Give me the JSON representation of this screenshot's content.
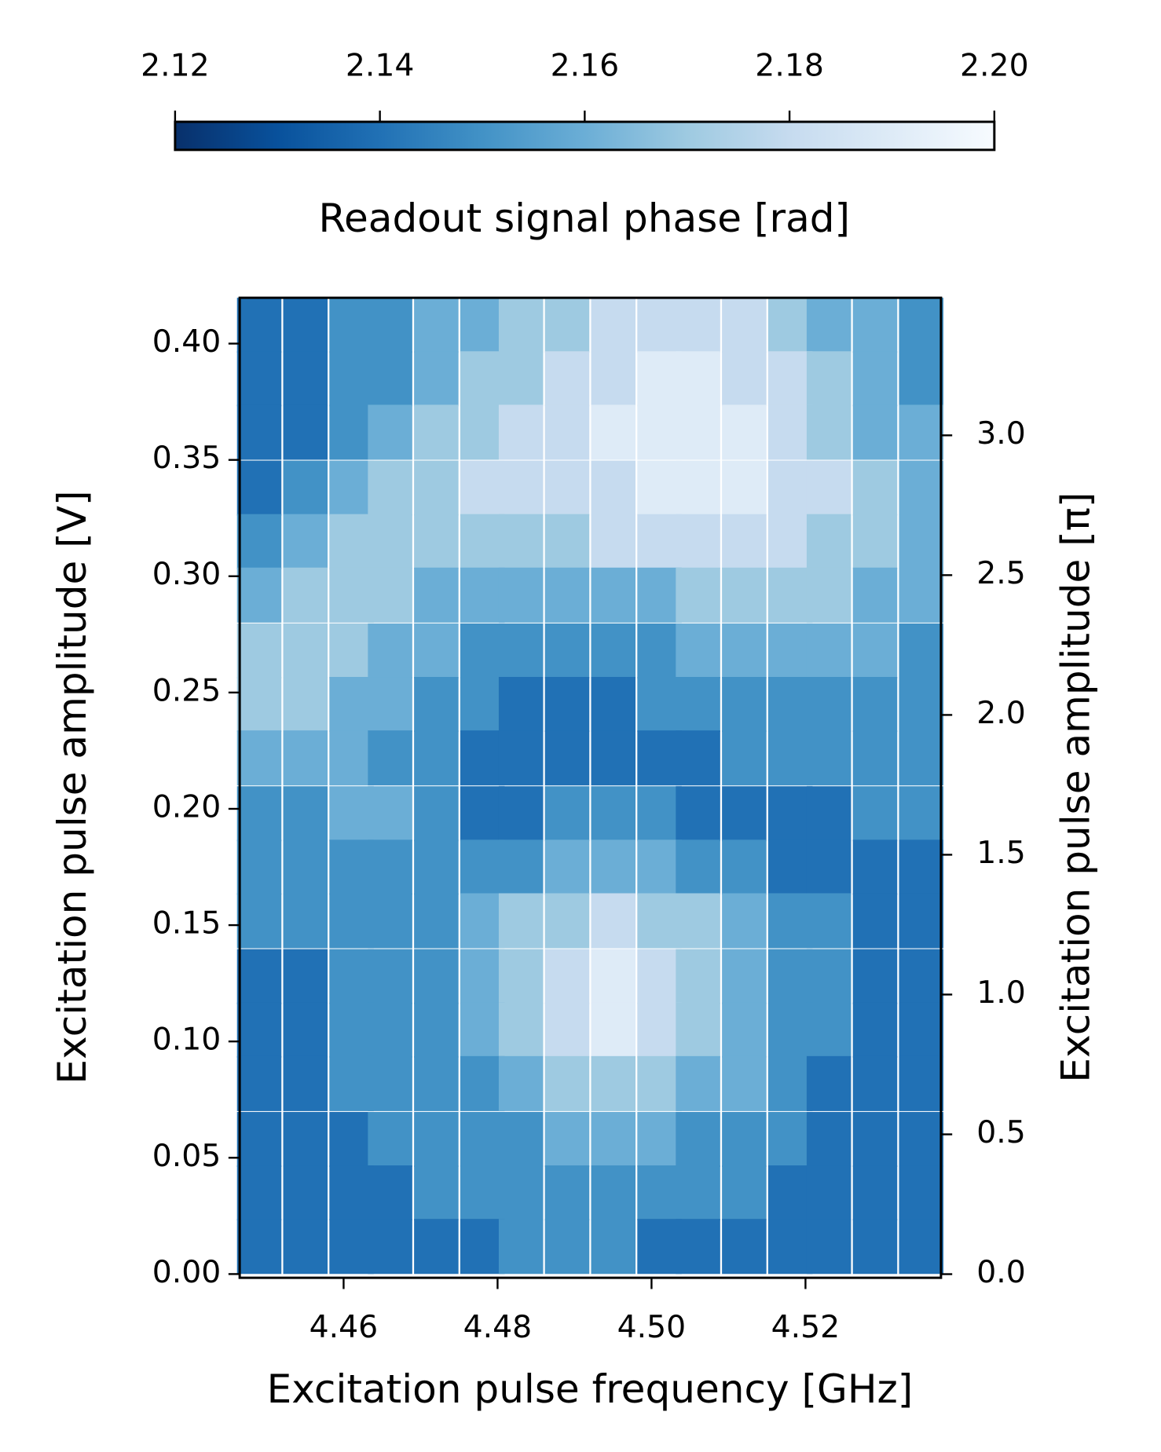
{
  "chart_data": {
    "type": "heatmap",
    "xlabel": "Excitation pulse frequency [GHz]",
    "ylabel": "Excitation pulse amplitude [V]",
    "y2label": "Excitation pulse amplitude [π]",
    "colorbar_label": "Readout signal phase [rad]",
    "xlim": [
      4.4465,
      4.5376
    ],
    "ylim": [
      -0.0016,
      0.4197
    ],
    "y2lim": [
      -0.013,
      3.492
    ],
    "clim": [
      2.12,
      2.2
    ],
    "xticks": [
      4.46,
      4.48,
      {
        "value": 4.5,
        "label": "4.50"
      },
      4.52
    ],
    "yticks": [
      {
        "value": 0,
        "label": "0.00"
      },
      0.05,
      {
        "value": 0.1,
        "label": "0.10"
      },
      0.15,
      {
        "value": 0.2,
        "label": "0.20"
      },
      0.25,
      {
        "value": 0.3,
        "label": "0.30"
      },
      0.35,
      {
        "value": 0.4,
        "label": "0.40"
      }
    ],
    "y2ticks": [
      {
        "value": 0,
        "label": "0.0"
      },
      0.5,
      {
        "value": 1,
        "label": "1.0"
      },
      1.5,
      {
        "value": 2,
        "label": "2.0"
      },
      2.5,
      {
        "value": 3,
        "label": "3.0"
      }
    ],
    "cticks": [
      2.12,
      2.14,
      2.16,
      2.18,
      {
        "value": 2.2,
        "label": "2.20"
      }
    ],
    "x": [
      4.449,
      4.455,
      4.461,
      4.466,
      4.472,
      4.478,
      4.483,
      4.489,
      4.495,
      4.501,
      4.506,
      4.512,
      4.518,
      4.523,
      4.529,
      4.535
    ],
    "y": [
      0.408,
      0.385,
      0.362,
      0.338,
      0.315,
      0.292,
      0.268,
      0.245,
      0.222,
      0.198,
      0.175,
      0.152,
      0.128,
      0.105,
      0.082,
      0.058,
      0.035,
      0.012
    ],
    "z": [
      [
        2.14,
        2.14,
        2.15,
        2.15,
        2.16,
        2.16,
        2.17,
        2.17,
        2.18,
        2.18,
        2.18,
        2.18,
        2.17,
        2.16,
        2.16,
        2.15
      ],
      [
        2.14,
        2.14,
        2.15,
        2.15,
        2.16,
        2.17,
        2.17,
        2.18,
        2.18,
        2.19,
        2.19,
        2.18,
        2.18,
        2.17,
        2.16,
        2.15
      ],
      [
        2.14,
        2.14,
        2.15,
        2.16,
        2.17,
        2.17,
        2.18,
        2.18,
        2.19,
        2.19,
        2.19,
        2.19,
        2.18,
        2.17,
        2.16,
        2.16
      ],
      [
        2.14,
        2.15,
        2.16,
        2.17,
        2.17,
        2.18,
        2.18,
        2.18,
        2.18,
        2.19,
        2.19,
        2.19,
        2.18,
        2.18,
        2.17,
        2.16
      ],
      [
        2.15,
        2.16,
        2.17,
        2.17,
        2.17,
        2.17,
        2.17,
        2.17,
        2.18,
        2.18,
        2.18,
        2.18,
        2.18,
        2.17,
        2.17,
        2.16
      ],
      [
        2.16,
        2.17,
        2.17,
        2.17,
        2.16,
        2.16,
        2.16,
        2.16,
        2.16,
        2.16,
        2.17,
        2.17,
        2.17,
        2.17,
        2.16,
        2.16
      ],
      [
        2.17,
        2.17,
        2.17,
        2.16,
        2.16,
        2.15,
        2.15,
        2.15,
        2.15,
        2.15,
        2.16,
        2.16,
        2.16,
        2.16,
        2.16,
        2.15
      ],
      [
        2.17,
        2.17,
        2.16,
        2.16,
        2.15,
        2.15,
        2.14,
        2.14,
        2.14,
        2.15,
        2.15,
        2.15,
        2.15,
        2.15,
        2.15,
        2.15
      ],
      [
        2.16,
        2.16,
        2.16,
        2.15,
        2.15,
        2.14,
        2.14,
        2.14,
        2.14,
        2.14,
        2.14,
        2.15,
        2.15,
        2.15,
        2.15,
        2.15
      ],
      [
        2.15,
        2.15,
        2.16,
        2.16,
        2.15,
        2.14,
        2.14,
        2.15,
        2.15,
        2.15,
        2.14,
        2.14,
        2.14,
        2.14,
        2.15,
        2.15
      ],
      [
        2.15,
        2.15,
        2.15,
        2.15,
        2.15,
        2.15,
        2.15,
        2.16,
        2.16,
        2.16,
        2.15,
        2.15,
        2.14,
        2.14,
        2.14,
        2.14
      ],
      [
        2.15,
        2.15,
        2.15,
        2.15,
        2.15,
        2.16,
        2.17,
        2.17,
        2.18,
        2.17,
        2.17,
        2.16,
        2.15,
        2.15,
        2.14,
        2.14
      ],
      [
        2.14,
        2.14,
        2.15,
        2.15,
        2.15,
        2.16,
        2.17,
        2.18,
        2.19,
        2.18,
        2.17,
        2.16,
        2.15,
        2.15,
        2.14,
        2.14
      ],
      [
        2.14,
        2.14,
        2.15,
        2.15,
        2.15,
        2.16,
        2.17,
        2.18,
        2.19,
        2.18,
        2.17,
        2.16,
        2.15,
        2.15,
        2.14,
        2.14
      ],
      [
        2.14,
        2.14,
        2.15,
        2.15,
        2.15,
        2.15,
        2.16,
        2.17,
        2.17,
        2.17,
        2.16,
        2.16,
        2.15,
        2.14,
        2.14,
        2.14
      ],
      [
        2.14,
        2.14,
        2.14,
        2.15,
        2.15,
        2.15,
        2.15,
        2.16,
        2.16,
        2.16,
        2.15,
        2.15,
        2.15,
        2.14,
        2.14,
        2.14
      ],
      [
        2.14,
        2.14,
        2.14,
        2.14,
        2.15,
        2.15,
        2.15,
        2.15,
        2.15,
        2.15,
        2.15,
        2.15,
        2.14,
        2.14,
        2.14,
        2.14
      ],
      [
        2.14,
        2.14,
        2.14,
        2.14,
        2.14,
        2.14,
        2.15,
        2.15,
        2.15,
        2.14,
        2.14,
        2.14,
        2.14,
        2.14,
        2.14,
        2.14
      ]
    ]
  }
}
